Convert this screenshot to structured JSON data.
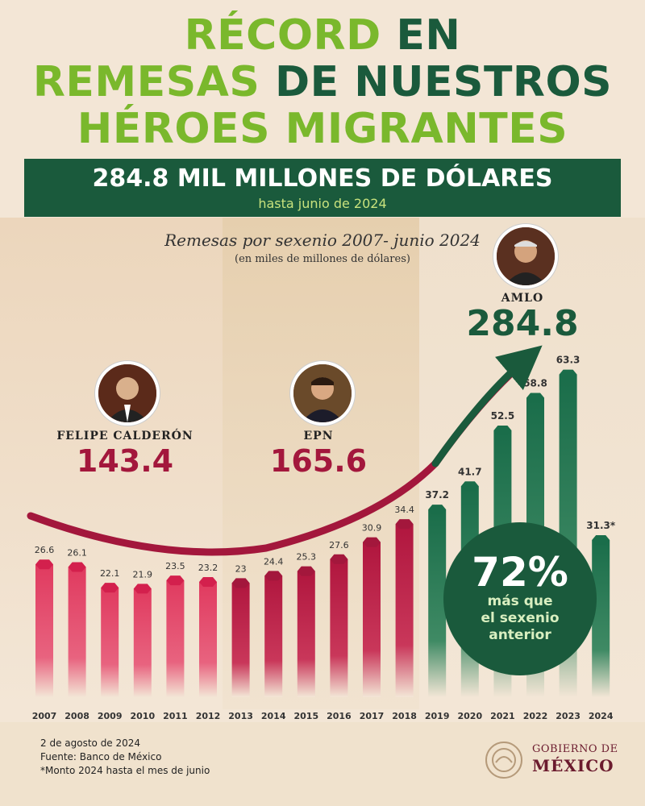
{
  "title": {
    "line1_a": "RÉCORD",
    "line1_b": "EN",
    "line2_a": "REMESAS",
    "line2_b": "DE NUESTROS",
    "line3": "HÉROES MIGRANTES"
  },
  "banner": {
    "main": "284.8 MIL MILLONES DE DÓLARES",
    "sub": "hasta junio de 2024"
  },
  "chart_data": {
    "type": "bar",
    "title": "Remesas por sexenio 2007- junio 2024",
    "subtitle": "(en miles de millones de dólares)",
    "categories": [
      "2007",
      "2008",
      "2009",
      "2010",
      "2011",
      "2012",
      "2013",
      "2014",
      "2015",
      "2016",
      "2017",
      "2018",
      "2019",
      "2020",
      "2021",
      "2022",
      "2023",
      "2024"
    ],
    "values": [
      26.6,
      26.1,
      22.1,
      21.9,
      23.5,
      23.2,
      23,
      24.4,
      25.3,
      27.6,
      30.9,
      34.4,
      37.2,
      41.7,
      52.5,
      58.8,
      63.3,
      31.3
    ],
    "value_labels": [
      "26.6",
      "26.1",
      "22.1",
      "21.9",
      "23.5",
      "23.2",
      "23",
      "24.4",
      "25.3",
      "27.6",
      "30.9",
      "34.4",
      "37.2",
      "41.7",
      "52.5",
      "58.8",
      "63.3",
      "31.3*"
    ],
    "groups": [
      {
        "name": "FELIPE CALDERÓN",
        "total": "143.4",
        "years": "2007-2012",
        "color": "#d3204d"
      },
      {
        "name": "EPN",
        "total": "165.6",
        "years": "2013-2018",
        "color": "#a3173c"
      },
      {
        "name": "AMLO",
        "total": "284.8",
        "years": "2019-2024",
        "color": "#1a6d4a"
      }
    ],
    "ylim": [
      0,
      70
    ]
  },
  "callout": {
    "pct": "72%",
    "line1": "más que",
    "line2": "el sexenio",
    "line3": "anterior"
  },
  "footer": {
    "date": "2 de agosto de 2024",
    "source": "Fuente: Banco de México",
    "note": "*Monto 2024 hasta el mes de junio"
  },
  "logo": {
    "line1": "GOBIERNO DE",
    "line2": "MÉXICO"
  },
  "colors": {
    "lime": "#7ab82c",
    "dark_green": "#1a5a3c",
    "red": "#d3204d",
    "dark_red": "#a3173c",
    "background": "#f3e6d6"
  }
}
